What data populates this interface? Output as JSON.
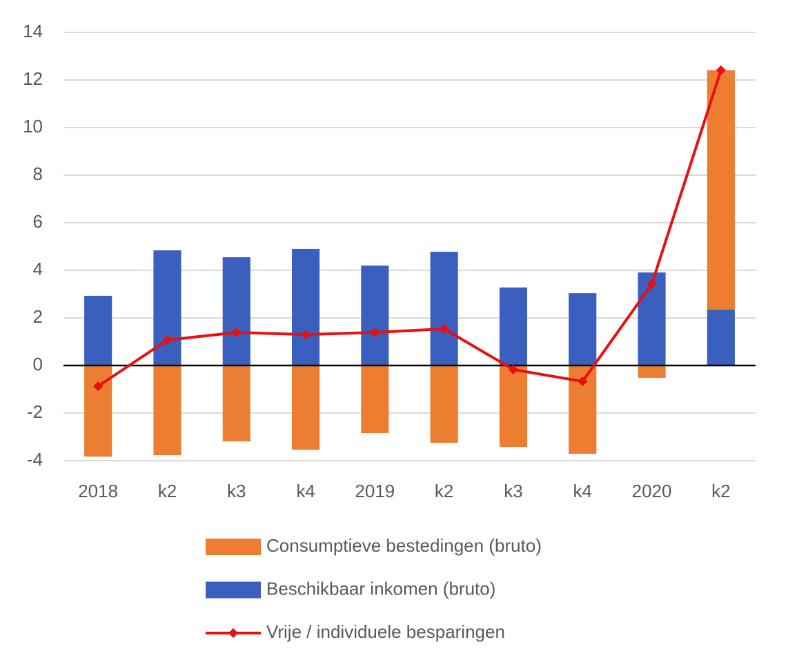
{
  "chart_data": {
    "type": "bar",
    "categories": [
      "2018",
      "k2",
      "k3",
      "k4",
      "2019",
      "k2",
      "k3",
      "k4",
      "2020",
      "k2"
    ],
    "series": [
      {
        "name": "Consumptieve bestedingen (bruto)",
        "type": "bar",
        "color": "#ed7d31",
        "values": [
          -3.83,
          -3.77,
          -3.19,
          -3.54,
          -2.84,
          -3.25,
          -3.42,
          -3.71,
          -0.52,
          10.06
        ]
      },
      {
        "name": "Beschikbaar inkomen (bruto)",
        "type": "bar",
        "color": "#3a5fbf",
        "values": [
          2.93,
          4.84,
          4.55,
          4.9,
          4.2,
          4.78,
          3.28,
          3.04,
          3.91,
          2.35
        ]
      },
      {
        "name": "Vrije / individuele besparingen",
        "type": "line",
        "color": "#e81010",
        "values": [
          -0.87,
          1.07,
          1.39,
          1.3,
          1.39,
          1.54,
          -0.17,
          -0.67,
          3.42,
          12.41
        ]
      }
    ],
    "stacked": true,
    "ylim": [
      -4,
      14
    ],
    "yticks": [
      -4,
      -2,
      0,
      2,
      4,
      6,
      8,
      10,
      12,
      14
    ],
    "grid": true,
    "legend": "bottom"
  }
}
